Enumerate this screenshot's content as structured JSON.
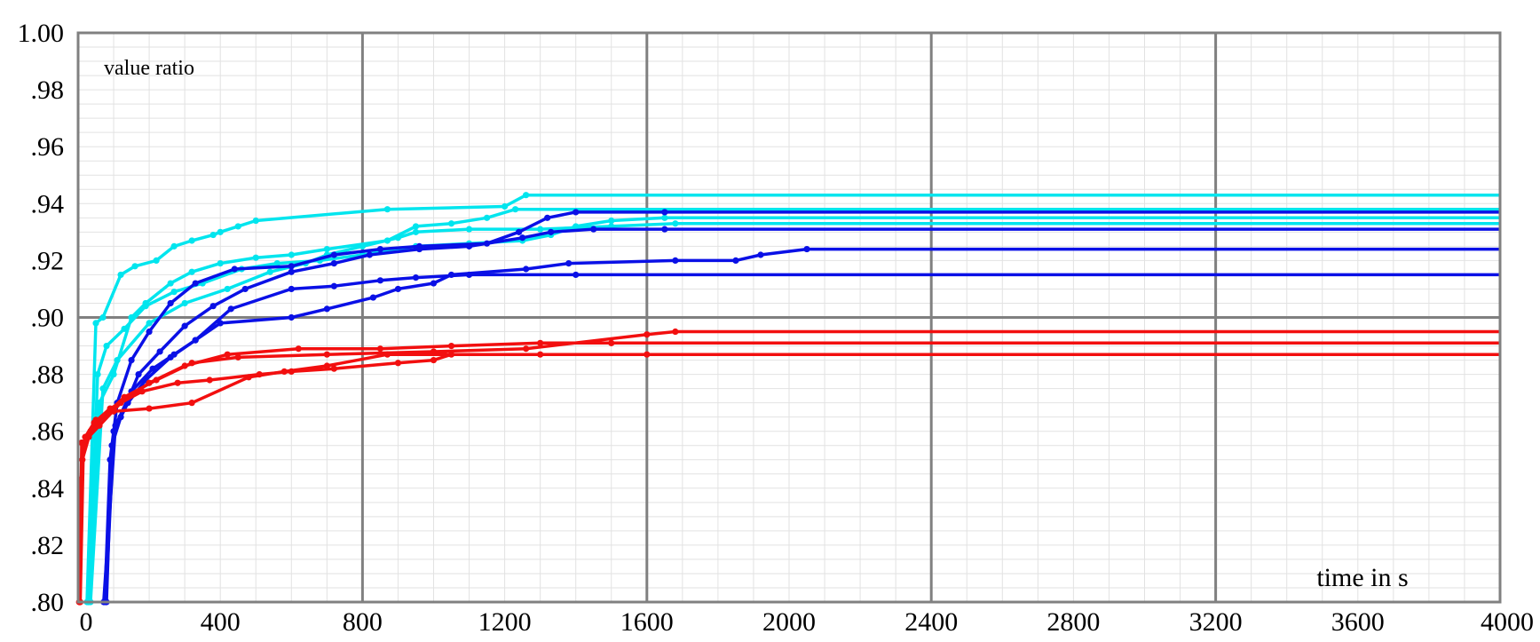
{
  "chart_data": {
    "type": "line",
    "title": "",
    "ylabel": "value ratio",
    "xlabel": "time in s",
    "xlim": [
      0,
      4000
    ],
    "ylim": [
      0.8,
      1.0
    ],
    "x_ticks": [
      0,
      400,
      800,
      1200,
      1600,
      2000,
      2400,
      2800,
      3200,
      3600,
      4000
    ],
    "x_tick_labels": [
      "0",
      "400",
      "800",
      "1200",
      "1600",
      "2000",
      "2400",
      "2800",
      "3200",
      "3600",
      "4000"
    ],
    "y_ticks": [
      0.8,
      0.82,
      0.84,
      0.86,
      0.88,
      0.9,
      0.92,
      0.94,
      0.96,
      0.98,
      1.0
    ],
    "y_tick_labels": [
      ".80",
      ".82",
      ".84",
      ".86",
      ".88",
      ".90",
      ".92",
      ".94",
      ".96",
      ".98",
      "1.00"
    ],
    "grid": true,
    "colors": {
      "cyan": "#00e5ee",
      "blue": "#0a10e6",
      "red": "#f20f0f",
      "grid_major": "#808080",
      "grid_minor": "#e2e2e2"
    },
    "series": [
      {
        "color": "#00e5ee",
        "points": [
          [
            25,
            0.8
          ],
          [
            50,
            0.898
          ],
          [
            70,
            0.9
          ],
          [
            120,
            0.915
          ],
          [
            160,
            0.918
          ],
          [
            220,
            0.92
          ],
          [
            270,
            0.925
          ],
          [
            320,
            0.927
          ],
          [
            380,
            0.929
          ],
          [
            400,
            0.93
          ],
          [
            450,
            0.932
          ],
          [
            500,
            0.934
          ],
          [
            870,
            0.938
          ],
          [
            1200,
            0.939
          ],
          [
            1260,
            0.943
          ],
          [
            4000,
            0.943
          ]
        ]
      },
      {
        "color": "#00e5ee",
        "points": [
          [
            28,
            0.8
          ],
          [
            60,
            0.87
          ],
          [
            100,
            0.88
          ],
          [
            150,
            0.9
          ],
          [
            190,
            0.905
          ],
          [
            260,
            0.912
          ],
          [
            320,
            0.916
          ],
          [
            400,
            0.919
          ],
          [
            500,
            0.921
          ],
          [
            600,
            0.922
          ],
          [
            700,
            0.924
          ],
          [
            870,
            0.927
          ],
          [
            950,
            0.932
          ],
          [
            1050,
            0.933
          ],
          [
            1150,
            0.935
          ],
          [
            1230,
            0.938
          ],
          [
            4000,
            0.938
          ]
        ]
      },
      {
        "color": "#00e5ee",
        "points": [
          [
            30,
            0.8
          ],
          [
            55,
            0.88
          ],
          [
            80,
            0.89
          ],
          [
            130,
            0.896
          ],
          [
            190,
            0.904
          ],
          [
            270,
            0.909
          ],
          [
            350,
            0.912
          ],
          [
            460,
            0.917
          ],
          [
            560,
            0.919
          ],
          [
            680,
            0.92
          ],
          [
            800,
            0.922
          ],
          [
            950,
            0.925
          ],
          [
            1100,
            0.926
          ],
          [
            1250,
            0.927
          ],
          [
            1330,
            0.929
          ],
          [
            1400,
            0.932
          ],
          [
            1500,
            0.934
          ],
          [
            1650,
            0.935
          ],
          [
            4000,
            0.935
          ]
        ]
      },
      {
        "color": "#00e5ee",
        "points": [
          [
            35,
            0.8
          ],
          [
            70,
            0.875
          ],
          [
            110,
            0.885
          ],
          [
            200,
            0.898
          ],
          [
            300,
            0.905
          ],
          [
            420,
            0.91
          ],
          [
            540,
            0.916
          ],
          [
            640,
            0.919
          ],
          [
            700,
            0.922
          ],
          [
            800,
            0.925
          ],
          [
            900,
            0.928
          ],
          [
            950,
            0.93
          ],
          [
            1100,
            0.931
          ],
          [
            1300,
            0.931
          ],
          [
            1500,
            0.932
          ],
          [
            1680,
            0.933
          ],
          [
            4000,
            0.933
          ]
        ]
      },
      {
        "color": "#0a10e6",
        "points": [
          [
            75,
            0.8
          ],
          [
            90,
            0.85
          ],
          [
            110,
            0.87
          ],
          [
            150,
            0.885
          ],
          [
            200,
            0.895
          ],
          [
            260,
            0.905
          ],
          [
            330,
            0.912
          ],
          [
            440,
            0.917
          ],
          [
            600,
            0.918
          ],
          [
            720,
            0.922
          ],
          [
            850,
            0.924
          ],
          [
            960,
            0.925
          ],
          [
            1150,
            0.926
          ],
          [
            1240,
            0.93
          ],
          [
            1320,
            0.935
          ],
          [
            1400,
            0.937
          ],
          [
            1650,
            0.937
          ],
          [
            4000,
            0.937
          ]
        ]
      },
      {
        "color": "#0a10e6",
        "points": [
          [
            80,
            0.8
          ],
          [
            95,
            0.855
          ],
          [
            120,
            0.865
          ],
          [
            170,
            0.88
          ],
          [
            230,
            0.888
          ],
          [
            300,
            0.897
          ],
          [
            380,
            0.904
          ],
          [
            470,
            0.91
          ],
          [
            600,
            0.916
          ],
          [
            720,
            0.919
          ],
          [
            820,
            0.922
          ],
          [
            960,
            0.924
          ],
          [
            1100,
            0.925
          ],
          [
            1250,
            0.928
          ],
          [
            1330,
            0.93
          ],
          [
            1450,
            0.931
          ],
          [
            1650,
            0.931
          ],
          [
            4000,
            0.931
          ]
        ]
      },
      {
        "color": "#0a10e6",
        "points": [
          [
            78,
            0.8
          ],
          [
            100,
            0.86
          ],
          [
            140,
            0.87
          ],
          [
            190,
            0.878
          ],
          [
            260,
            0.886
          ],
          [
            330,
            0.892
          ],
          [
            400,
            0.898
          ],
          [
            600,
            0.9
          ],
          [
            700,
            0.903
          ],
          [
            830,
            0.907
          ],
          [
            900,
            0.91
          ],
          [
            1000,
            0.912
          ],
          [
            1050,
            0.915
          ],
          [
            1260,
            0.917
          ],
          [
            1380,
            0.919
          ],
          [
            1680,
            0.92
          ],
          [
            1850,
            0.92
          ],
          [
            1920,
            0.922
          ],
          [
            2050,
            0.924
          ],
          [
            4000,
            0.924
          ]
        ]
      },
      {
        "color": "#0a10e6",
        "points": [
          [
            72,
            0.8
          ],
          [
            105,
            0.862
          ],
          [
            150,
            0.874
          ],
          [
            210,
            0.882
          ],
          [
            270,
            0.887
          ],
          [
            330,
            0.892
          ],
          [
            430,
            0.903
          ],
          [
            600,
            0.91
          ],
          [
            720,
            0.911
          ],
          [
            850,
            0.913
          ],
          [
            950,
            0.914
          ],
          [
            1100,
            0.915
          ],
          [
            1400,
            0.915
          ],
          [
            4000,
            0.915
          ]
        ]
      },
      {
        "color": "#f20f0f",
        "points": [
          [
            5,
            0.8
          ],
          [
            10,
            0.856
          ],
          [
            30,
            0.858
          ],
          [
            60,
            0.862
          ],
          [
            120,
            0.87
          ],
          [
            200,
            0.877
          ],
          [
            300,
            0.883
          ],
          [
            420,
            0.887
          ],
          [
            620,
            0.889
          ],
          [
            850,
            0.889
          ],
          [
            1050,
            0.89
          ],
          [
            1300,
            0.891
          ],
          [
            1500,
            0.891
          ],
          [
            4000,
            0.891
          ]
        ]
      },
      {
        "color": "#f20f0f",
        "points": [
          [
            3,
            0.8
          ],
          [
            12,
            0.85
          ],
          [
            35,
            0.86
          ],
          [
            70,
            0.865
          ],
          [
            130,
            0.872
          ],
          [
            220,
            0.878
          ],
          [
            320,
            0.884
          ],
          [
            450,
            0.886
          ],
          [
            700,
            0.887
          ],
          [
            1000,
            0.888
          ],
          [
            1260,
            0.889
          ],
          [
            1600,
            0.894
          ],
          [
            1680,
            0.895
          ],
          [
            4000,
            0.895
          ]
        ]
      },
      {
        "color": "#f20f0f",
        "points": [
          [
            4,
            0.8
          ],
          [
            8,
            0.843
          ],
          [
            20,
            0.858
          ],
          [
            50,
            0.864
          ],
          [
            100,
            0.867
          ],
          [
            200,
            0.868
          ],
          [
            320,
            0.87
          ],
          [
            480,
            0.879
          ],
          [
            580,
            0.881
          ],
          [
            700,
            0.883
          ],
          [
            870,
            0.887
          ],
          [
            1030,
            0.887
          ],
          [
            1300,
            0.887
          ],
          [
            1600,
            0.887
          ],
          [
            4000,
            0.887
          ]
        ]
      },
      {
        "color": "#f20f0f",
        "points": [
          [
            6,
            0.8
          ],
          [
            15,
            0.855
          ],
          [
            45,
            0.863
          ],
          [
            90,
            0.868
          ],
          [
            180,
            0.874
          ],
          [
            280,
            0.877
          ],
          [
            370,
            0.878
          ],
          [
            510,
            0.88
          ],
          [
            600,
            0.881
          ],
          [
            720,
            0.882
          ],
          [
            900,
            0.884
          ],
          [
            1000,
            0.885
          ],
          [
            1050,
            0.887
          ],
          [
            4000,
            0.887
          ]
        ]
      }
    ]
  }
}
